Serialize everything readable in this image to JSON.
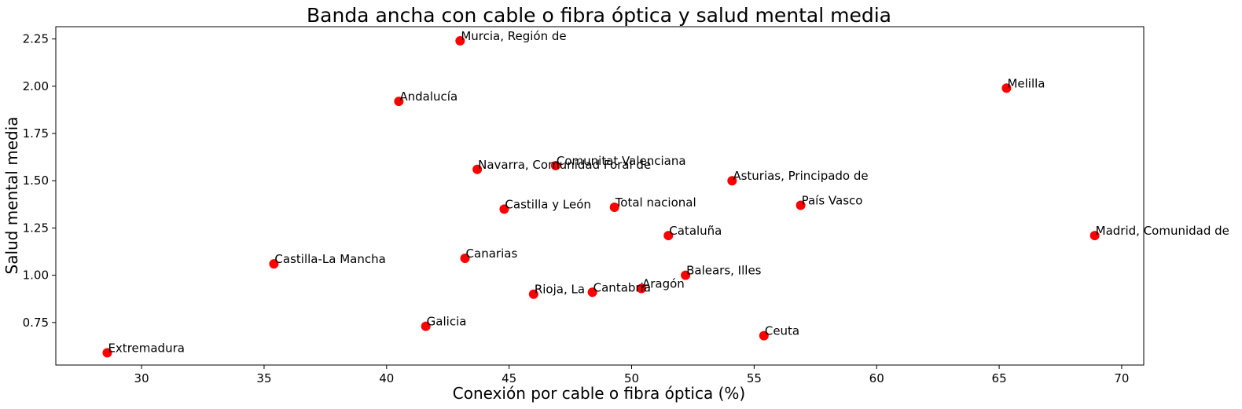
{
  "chart_data": {
    "type": "scatter",
    "title": "Banda ancha con cable o fibra óptica y salud mental media",
    "xlabel": "Conexión por cable o fibra óptica (%)",
    "ylabel": "Salud mental media",
    "xlim": [
      26.5,
      70.9
    ],
    "ylim": [
      0.525,
      2.315
    ],
    "xticks": [
      30,
      35,
      40,
      45,
      50,
      55,
      60,
      65,
      70
    ],
    "yticks": [
      0.75,
      1.0,
      1.25,
      1.5,
      1.75,
      2.0,
      2.25
    ],
    "xtick_labels": [
      "30",
      "35",
      "40",
      "45",
      "50",
      "55",
      "60",
      "65",
      "70"
    ],
    "ytick_labels": [
      "0.75",
      "1.00",
      "1.25",
      "1.50",
      "1.75",
      "2.00",
      "2.25"
    ],
    "grid": false,
    "point_color": "#ff0000",
    "points": [
      {
        "label": "Murcia, Región de",
        "x": 43.0,
        "y": 2.24
      },
      {
        "label": "Andalucía",
        "x": 40.5,
        "y": 1.92
      },
      {
        "label": "Melilla",
        "x": 65.3,
        "y": 1.99
      },
      {
        "label": "Comunitat Valenciana",
        "x": 46.9,
        "y": 1.58
      },
      {
        "label": "Navarra, Comunidad Foral de",
        "x": 43.7,
        "y": 1.56
      },
      {
        "label": "Asturias, Principado de",
        "x": 54.1,
        "y": 1.5
      },
      {
        "label": "Castilla y León",
        "x": 44.8,
        "y": 1.35
      },
      {
        "label": "Total nacional",
        "x": 49.3,
        "y": 1.36
      },
      {
        "label": "País Vasco",
        "x": 56.9,
        "y": 1.37
      },
      {
        "label": "Cataluña",
        "x": 51.5,
        "y": 1.21
      },
      {
        "label": "Madrid, Comunidad de",
        "x": 68.9,
        "y": 1.21
      },
      {
        "label": "Castilla-La Mancha",
        "x": 35.4,
        "y": 1.06
      },
      {
        "label": "Canarias",
        "x": 43.2,
        "y": 1.09
      },
      {
        "label": "Balears, Illes",
        "x": 52.2,
        "y": 1.0
      },
      {
        "label": "Aragón",
        "x": 50.4,
        "y": 0.93
      },
      {
        "label": "Cantabria",
        "x": 48.4,
        "y": 0.91
      },
      {
        "label": "Rioja, La",
        "x": 46.0,
        "y": 0.9
      },
      {
        "label": "Galicia",
        "x": 41.6,
        "y": 0.73
      },
      {
        "label": "Ceuta",
        "x": 55.4,
        "y": 0.68
      },
      {
        "label": "Extremadura",
        "x": 28.6,
        "y": 0.59
      }
    ]
  }
}
